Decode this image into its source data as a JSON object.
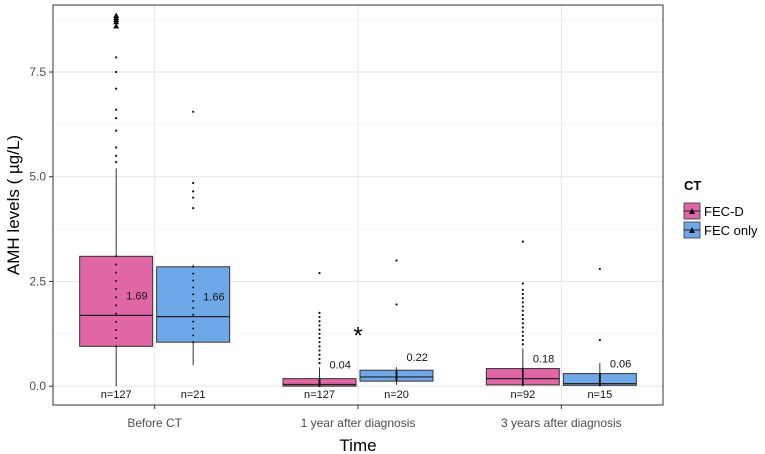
{
  "chart_data": {
    "type": "boxplot",
    "title": "",
    "xlabel": "Time",
    "ylabel": "AMH levels ( µg/L)",
    "ylim": [
      -0.45,
      9.1
    ],
    "yticks": [
      0.0,
      2.5,
      5.0,
      7.5
    ],
    "ytick_labels": [
      "0.0",
      "2.5",
      "5.0",
      "7.5"
    ],
    "categories": [
      "Before CT",
      "1 year after diagnosis",
      "3 years after diagnosis"
    ],
    "grid": true,
    "legend": {
      "title": "CT",
      "position": "right",
      "entries": [
        {
          "name": "FEC-D",
          "color": "#e066a6"
        },
        {
          "name": "FEC only",
          "color": "#6fa8e8"
        }
      ]
    },
    "series": [
      {
        "name": "FEC-D",
        "color": "#e066a6",
        "boxes": [
          {
            "category": "Before CT",
            "q1": 0.95,
            "median": 1.69,
            "q3": 3.1,
            "whisker_low": 0.0,
            "whisker_high": 5.2,
            "median_label": "1.69",
            "n_label": "n=127",
            "outliers": [
              5.35,
              5.5,
              5.7,
              6.1,
              6.4,
              6.6,
              7.1,
              7.5,
              7.85,
              8.6,
              8.7,
              8.75,
              8.8,
              8.85
            ]
          },
          {
            "category": "1 year after diagnosis",
            "q1": 0.0,
            "median": 0.04,
            "q3": 0.18,
            "whisker_low": 0.0,
            "whisker_high": 0.45,
            "median_label": "0.04",
            "n_label": "n=127",
            "outliers": [
              0.55,
              0.65,
              0.75,
              0.85,
              0.95,
              1.05,
              1.15,
              1.25,
              1.35,
              1.45,
              1.55,
              1.65,
              1.75,
              2.7
            ]
          },
          {
            "category": "3 years after diagnosis",
            "q1": 0.03,
            "median": 0.18,
            "q3": 0.42,
            "whisker_low": 0.0,
            "whisker_high": 0.9,
            "median_label": "0.18",
            "n_label": "n=92",
            "outliers": [
              1.0,
              1.1,
              1.2,
              1.3,
              1.4,
              1.5,
              1.6,
              1.7,
              1.8,
              1.9,
              2.0,
              2.1,
              2.2,
              2.3,
              2.45,
              3.45
            ]
          }
        ]
      },
      {
        "name": "FEC only",
        "color": "#6fa8e8",
        "boxes": [
          {
            "category": "Before CT",
            "q1": 1.05,
            "median": 1.66,
            "q3": 2.85,
            "whisker_low": 0.5,
            "whisker_high": 2.9,
            "median_label": "1.66",
            "n_label": "n=21",
            "outliers": [
              4.25,
              4.5,
              4.65,
              4.85,
              6.55
            ]
          },
          {
            "category": "1 year after diagnosis",
            "q1": 0.12,
            "median": 0.22,
            "q3": 0.38,
            "whisker_low": 0.03,
            "whisker_high": 0.45,
            "median_label": "0.22",
            "n_label": "n=20",
            "outliers": [
              1.95,
              3.0
            ]
          },
          {
            "category": "3 years after diagnosis",
            "q1": 0.02,
            "median": 0.06,
            "q3": 0.3,
            "whisker_low": 0.0,
            "whisker_high": 0.55,
            "median_label": "0.06",
            "n_label": "n=15",
            "outliers": [
              1.1,
              2.8
            ]
          }
        ]
      }
    ],
    "annotations": [
      {
        "text": "*",
        "category": "1 year after diagnosis",
        "y": 1.3
      }
    ]
  }
}
